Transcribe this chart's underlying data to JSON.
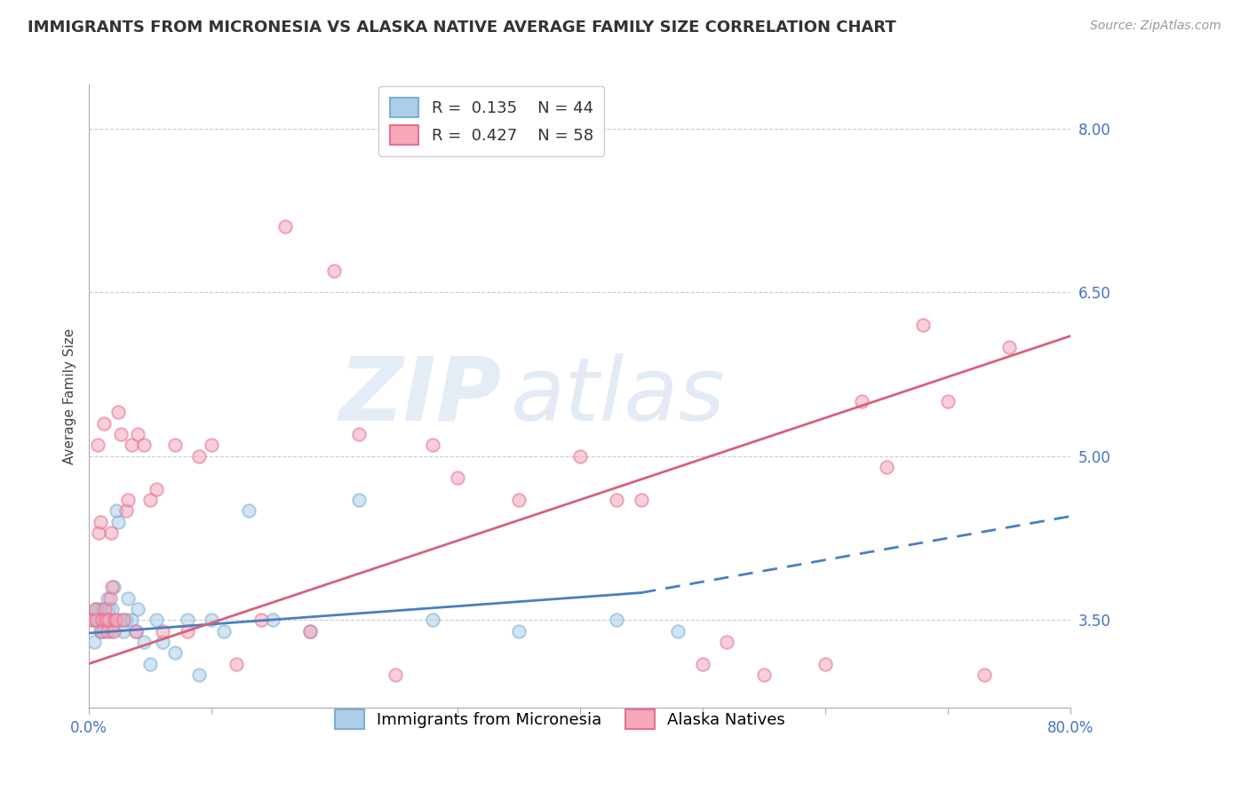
{
  "title": "IMMIGRANTS FROM MICRONESIA VS ALASKA NATIVE AVERAGE FAMILY SIZE CORRELATION CHART",
  "source": "Source: ZipAtlas.com",
  "ylabel": "Average Family Size",
  "yticks_right": [
    3.5,
    5.0,
    6.5,
    8.0
  ],
  "xticks": [
    0.0,
    10.0,
    20.0,
    30.0,
    40.0,
    50.0,
    60.0,
    70.0,
    80.0
  ],
  "xlim": [
    0.0,
    80.0
  ],
  "ylim": [
    2.7,
    8.4
  ],
  "label_blue": "Immigrants from Micronesia",
  "label_pink": "Alaska Natives",
  "blue_face": "#aecde8",
  "blue_edge": "#7bafd4",
  "pink_face": "#f4a8b8",
  "pink_edge": "#e87090",
  "trend_blue_color": "#4a7fc1",
  "trend_pink_color": "#d95f7a",
  "background": "#ffffff",
  "grid_color": "#cccccc",
  "blue_x": [
    0.3,
    0.4,
    0.5,
    0.6,
    0.7,
    0.8,
    0.9,
    1.0,
    1.1,
    1.2,
    1.3,
    1.4,
    1.5,
    1.6,
    1.7,
    1.8,
    1.9,
    2.0,
    2.2,
    2.4,
    2.6,
    2.8,
    3.0,
    3.2,
    3.5,
    3.8,
    4.0,
    4.5,
    5.0,
    5.5,
    6.0,
    7.0,
    8.0,
    9.0,
    10.0,
    11.0,
    13.0,
    15.0,
    18.0,
    22.0,
    28.0,
    35.0,
    43.0,
    48.0
  ],
  "blue_y": [
    3.5,
    3.3,
    3.5,
    3.6,
    3.5,
    3.6,
    3.4,
    3.5,
    3.6,
    3.4,
    3.5,
    3.5,
    3.7,
    3.6,
    3.5,
    3.4,
    3.6,
    3.8,
    4.5,
    4.4,
    3.5,
    3.4,
    3.5,
    3.7,
    3.5,
    3.4,
    3.6,
    3.3,
    3.1,
    3.5,
    3.3,
    3.2,
    3.5,
    3.0,
    3.5,
    3.4,
    4.5,
    3.5,
    3.4,
    4.6,
    3.5,
    3.4,
    3.5,
    3.4
  ],
  "pink_x": [
    0.3,
    0.5,
    0.6,
    0.7,
    0.8,
    0.9,
    1.0,
    1.1,
    1.2,
    1.3,
    1.4,
    1.5,
    1.6,
    1.7,
    1.8,
    1.9,
    2.0,
    2.1,
    2.2,
    2.4,
    2.6,
    2.8,
    3.0,
    3.2,
    3.5,
    3.8,
    4.0,
    4.5,
    5.0,
    5.5,
    6.0,
    7.0,
    8.0,
    9.0,
    10.0,
    12.0,
    14.0,
    16.0,
    18.0,
    20.0,
    22.0,
    25.0,
    28.0,
    30.0,
    35.0,
    40.0,
    43.0,
    45.0,
    50.0,
    52.0,
    55.0,
    60.0,
    63.0,
    65.0,
    68.0,
    70.0,
    73.0,
    75.0
  ],
  "pink_y": [
    3.5,
    3.6,
    3.5,
    5.1,
    4.3,
    4.4,
    3.4,
    3.5,
    5.3,
    3.6,
    3.5,
    3.4,
    3.5,
    3.7,
    4.3,
    3.8,
    3.4,
    3.5,
    3.5,
    5.4,
    5.2,
    3.5,
    4.5,
    4.6,
    5.1,
    3.4,
    5.2,
    5.1,
    4.6,
    4.7,
    3.4,
    5.1,
    3.4,
    5.0,
    5.1,
    3.1,
    3.5,
    7.1,
    3.4,
    6.7,
    5.2,
    3.0,
    5.1,
    4.8,
    4.6,
    5.0,
    4.6,
    4.6,
    3.1,
    3.3,
    3.0,
    3.1,
    5.5,
    4.9,
    6.2,
    5.5,
    3.0,
    6.0
  ],
  "blue_solid_end": 45.0,
  "pink_line_start": 0.0,
  "pink_line_end": 80.0,
  "blue_trend_start_y": 3.38,
  "blue_trend_end_solid_y": 3.75,
  "blue_trend_end_dash_y": 4.45,
  "pink_trend_start_y": 3.1,
  "pink_trend_end_y": 6.1,
  "title_fontsize": 13,
  "axis_label_fontsize": 11,
  "tick_fontsize": 12,
  "legend_fontsize": 13,
  "source_fontsize": 10,
  "marker_size": 110,
  "marker_alpha": 0.55,
  "marker_lw": 1.5,
  "watermark_text": "ZIPatlas",
  "watermark_color": "#c5d8ee",
  "watermark_alpha": 0.45,
  "right_tick_color": "#4472c4",
  "x_tick_color": "#4472c4"
}
